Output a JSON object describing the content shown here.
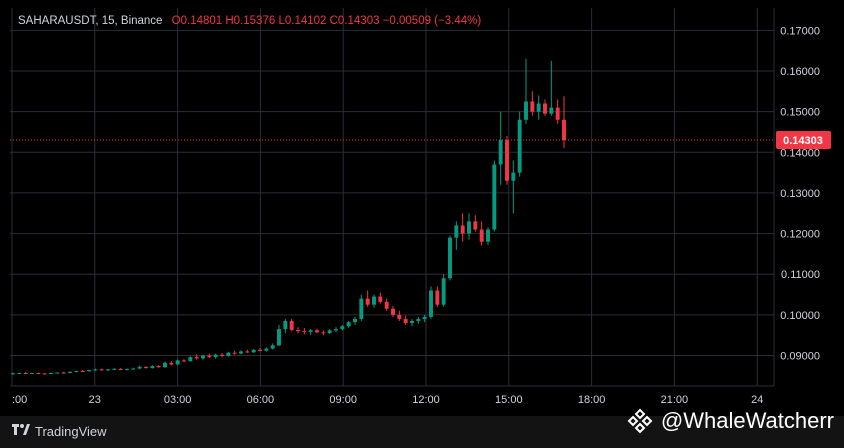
{
  "legend": {
    "symbol": "SAHARAUSDT, 15, Binance",
    "open": "O0.14801",
    "high": "H0.15376",
    "low": "L0.14102",
    "close": "C0.14303",
    "change": "−0.00509 (−3.44%)"
  },
  "footer": {
    "brand": "TradingView",
    "watermark": "@WhaleWatcherr"
  },
  "colors": {
    "up": "#089981",
    "down": "#f23645",
    "grid": "#2a2e39",
    "price_label_bg": "#f23645"
  },
  "chart_data": {
    "type": "candlestick",
    "ylim": [
      0.0825,
      0.1755
    ],
    "y_ticks": [
      "0.09000",
      "0.10000",
      "0.11000",
      "0.12000",
      "0.13000",
      "0.14000",
      "0.15000",
      "0.16000",
      "0.17000"
    ],
    "x_ticks": [
      ":00",
      "23",
      "03:00",
      "06:00",
      "09:00",
      "12:00",
      "15:00",
      "18:00",
      "21:00",
      "24"
    ],
    "last_price_label": "0.14303",
    "last_price": 0.14303,
    "candles": [
      [
        0.0855,
        0.0858,
        0.0853,
        0.0856
      ],
      [
        0.0856,
        0.0858,
        0.0855,
        0.0857
      ],
      [
        0.0857,
        0.0859,
        0.0855,
        0.0856
      ],
      [
        0.0856,
        0.0858,
        0.0855,
        0.0857
      ],
      [
        0.0857,
        0.0858,
        0.0855,
        0.0856
      ],
      [
        0.0856,
        0.0857,
        0.0854,
        0.0855
      ],
      [
        0.0855,
        0.0858,
        0.0854,
        0.0857
      ],
      [
        0.0857,
        0.0859,
        0.0856,
        0.0858
      ],
      [
        0.0858,
        0.086,
        0.0856,
        0.0857
      ],
      [
        0.0857,
        0.0861,
        0.0856,
        0.086
      ],
      [
        0.086,
        0.0863,
        0.0858,
        0.0862
      ],
      [
        0.0862,
        0.0864,
        0.086,
        0.0861
      ],
      [
        0.0861,
        0.0865,
        0.086,
        0.0864
      ],
      [
        0.0864,
        0.0868,
        0.0862,
        0.0866
      ],
      [
        0.0866,
        0.0868,
        0.0863,
        0.0864
      ],
      [
        0.0864,
        0.0867,
        0.0862,
        0.0866
      ],
      [
        0.0866,
        0.0869,
        0.0864,
        0.0867
      ],
      [
        0.0867,
        0.0869,
        0.0864,
        0.0865
      ],
      [
        0.0865,
        0.0868,
        0.0863,
        0.0867
      ],
      [
        0.0867,
        0.087,
        0.0865,
        0.0868
      ],
      [
        0.0868,
        0.0875,
        0.0866,
        0.0872
      ],
      [
        0.0872,
        0.0874,
        0.0868,
        0.0869
      ],
      [
        0.0869,
        0.0876,
        0.0868,
        0.0874
      ],
      [
        0.0874,
        0.0876,
        0.087,
        0.0871
      ],
      [
        0.0871,
        0.0885,
        0.087,
        0.0882
      ],
      [
        0.0882,
        0.0886,
        0.0876,
        0.0878
      ],
      [
        0.0878,
        0.089,
        0.0877,
        0.0888
      ],
      [
        0.0888,
        0.0891,
        0.0884,
        0.0886
      ],
      [
        0.0886,
        0.0898,
        0.0885,
        0.0896
      ],
      [
        0.0896,
        0.0903,
        0.089,
        0.0893
      ],
      [
        0.0893,
        0.0902,
        0.089,
        0.09
      ],
      [
        0.09,
        0.0905,
        0.0894,
        0.0896
      ],
      [
        0.0896,
        0.0905,
        0.0892,
        0.0902
      ],
      [
        0.0902,
        0.0906,
        0.0896,
        0.0899
      ],
      [
        0.0899,
        0.0909,
        0.0897,
        0.0907
      ],
      [
        0.0907,
        0.0912,
        0.0902,
        0.0905
      ],
      [
        0.0905,
        0.0913,
        0.0903,
        0.091
      ],
      [
        0.091,
        0.0914,
        0.0906,
        0.0908
      ],
      [
        0.0908,
        0.0916,
        0.0906,
        0.0914
      ],
      [
        0.0914,
        0.0918,
        0.091,
        0.0912
      ],
      [
        0.0912,
        0.092,
        0.091,
        0.0917
      ],
      [
        0.0917,
        0.093,
        0.0915,
        0.0925
      ],
      [
        0.0925,
        0.0975,
        0.0923,
        0.0965
      ],
      [
        0.0965,
        0.099,
        0.0955,
        0.0985
      ],
      [
        0.0985,
        0.099,
        0.096,
        0.0963
      ],
      [
        0.0963,
        0.097,
        0.0955,
        0.096
      ],
      [
        0.096,
        0.0968,
        0.0952,
        0.0958
      ],
      [
        0.0958,
        0.0965,
        0.095,
        0.0962
      ],
      [
        0.0962,
        0.0966,
        0.0955,
        0.0957
      ],
      [
        0.0957,
        0.0962,
        0.095,
        0.0955
      ],
      [
        0.0955,
        0.0965,
        0.0953,
        0.0962
      ],
      [
        0.0962,
        0.097,
        0.0958,
        0.0965
      ],
      [
        0.0965,
        0.0975,
        0.0962,
        0.0972
      ],
      [
        0.0972,
        0.0985,
        0.0968,
        0.0982
      ],
      [
        0.0982,
        0.0995,
        0.0975,
        0.099
      ],
      [
        0.099,
        0.105,
        0.0985,
        0.104
      ],
      [
        0.104,
        0.106,
        0.102,
        0.1025
      ],
      [
        0.1025,
        0.105,
        0.1018,
        0.1045
      ],
      [
        0.1045,
        0.1055,
        0.1028,
        0.1032
      ],
      [
        0.1032,
        0.104,
        0.101,
        0.1015
      ],
      [
        0.1015,
        0.1022,
        0.0995,
        0.1
      ],
      [
        0.1,
        0.101,
        0.0985,
        0.099
      ],
      [
        0.099,
        0.0998,
        0.0975,
        0.098
      ],
      [
        0.098,
        0.099,
        0.0972,
        0.0985
      ],
      [
        0.0985,
        0.0995,
        0.0978,
        0.099
      ],
      [
        0.099,
        0.1,
        0.0982,
        0.0995
      ],
      [
        0.0995,
        0.107,
        0.099,
        0.106
      ],
      [
        0.106,
        0.107,
        0.102,
        0.1025
      ],
      [
        0.1025,
        0.11,
        0.102,
        0.109
      ],
      [
        0.109,
        0.1195,
        0.1085,
        0.119
      ],
      [
        0.119,
        0.123,
        0.116,
        0.122
      ],
      [
        0.122,
        0.125,
        0.118,
        0.12
      ],
      [
        0.12,
        0.125,
        0.1185,
        0.123
      ],
      [
        0.123,
        0.1245,
        0.1205,
        0.121
      ],
      [
        0.121,
        0.123,
        0.117,
        0.118
      ],
      [
        0.118,
        0.1215,
        0.1172,
        0.121
      ],
      [
        0.121,
        0.138,
        0.1205,
        0.137
      ],
      [
        0.137,
        0.15,
        0.132,
        0.143
      ],
      [
        0.143,
        0.144,
        0.132,
        0.133
      ],
      [
        0.133,
        0.138,
        0.125,
        0.135
      ],
      [
        0.135,
        0.15,
        0.134,
        0.148
      ],
      [
        0.148,
        0.163,
        0.147,
        0.1525
      ],
      [
        0.1525,
        0.155,
        0.149,
        0.15
      ],
      [
        0.15,
        0.154,
        0.148,
        0.152
      ],
      [
        0.152,
        0.153,
        0.149,
        0.1495
      ],
      [
        0.1495,
        0.1625,
        0.149,
        0.151
      ],
      [
        0.151,
        0.153,
        0.147,
        0.148
      ],
      [
        0.148,
        0.1538,
        0.141,
        0.143
      ]
    ]
  }
}
